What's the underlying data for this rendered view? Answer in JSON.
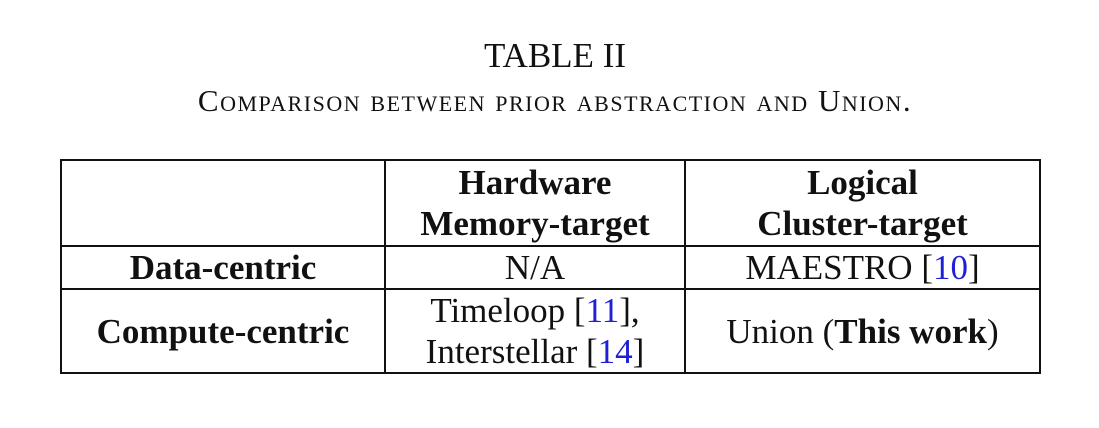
{
  "caption": {
    "label": "TABLE II",
    "text": "Comparison between prior abstraction and Union."
  },
  "table": {
    "header": {
      "corner": "",
      "col2_line1": "Hardware",
      "col2_line2": "Memory-target",
      "col3_line1": "Logical",
      "col3_line2": "Cluster-target"
    },
    "rows": [
      {
        "label": "Data-centric",
        "hardware": "N/A",
        "logical_name": "MAESTRO",
        "logical_cite": "10"
      },
      {
        "label": "Compute-centric",
        "hardware_line1_name": "Timeloop",
        "hardware_line1_cite": "11",
        "hardware_line2_name": "Interstellar",
        "hardware_line2_cite": "14",
        "logical_prefix": "Union (",
        "logical_bold": "This work",
        "logical_suffix": ")"
      }
    ]
  },
  "colors": {
    "citation_link": "#1f1fd8",
    "text": "#111111"
  }
}
